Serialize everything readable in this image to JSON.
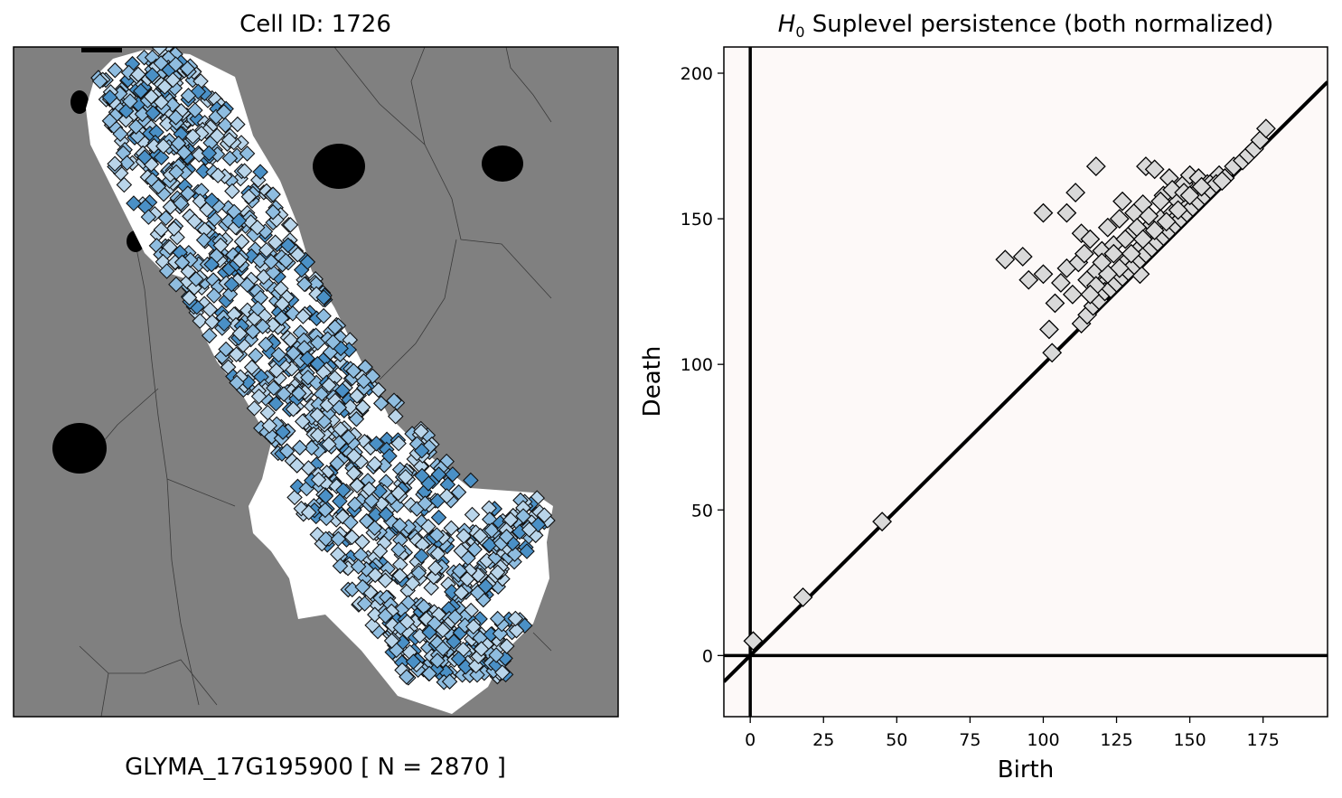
{
  "left_panel": {
    "title": "Cell ID: 1726",
    "caption": "GLYMA_17G195900   [ N = 2870 ]",
    "colors": {
      "background": "#808080",
      "cell": "#ffffff",
      "nuclei": "#000000",
      "boundaries": "#3a3a3a",
      "marker_light": "#b9d5ea",
      "marker_mid": "#8fbde0",
      "marker_dark": "#4a90c6"
    },
    "marker_shape": "diamond"
  },
  "chart_data": {
    "type": "scatter",
    "title_symbol": "H",
    "title_subscript": "0",
    "title_rest": " Suplevel persistence (both normalized)",
    "xlabel": "Birth",
    "ylabel": "Death",
    "xlim": [
      -9,
      197
    ],
    "ylim": [
      -21,
      209
    ],
    "xticks": [
      0,
      25,
      50,
      75,
      100,
      125,
      150,
      175
    ],
    "yticks": [
      0,
      50,
      100,
      150,
      200
    ],
    "grid": false,
    "marker": "diamond",
    "marker_color": "#d9d9d9",
    "background": "#fdf9f8",
    "reference_lines": [
      "x = 0",
      "y = 0",
      "y = x"
    ],
    "points": [
      [
        1,
        5
      ],
      [
        18,
        20
      ],
      [
        45,
        46
      ],
      [
        103,
        104
      ],
      [
        102,
        112
      ],
      [
        104,
        121
      ],
      [
        106,
        128
      ],
      [
        87,
        136
      ],
      [
        93,
        137
      ],
      [
        95,
        129
      ],
      [
        100,
        131
      ],
      [
        100,
        152
      ],
      [
        108,
        152
      ],
      [
        111,
        159
      ],
      [
        118,
        168
      ],
      [
        108,
        133
      ],
      [
        112,
        135
      ],
      [
        113,
        145
      ],
      [
        115,
        129
      ],
      [
        116,
        143
      ],
      [
        118,
        132
      ],
      [
        120,
        139
      ],
      [
        121,
        128
      ],
      [
        122,
        147
      ],
      [
        124,
        141
      ],
      [
        126,
        150
      ],
      [
        127,
        156
      ],
      [
        128,
        135
      ],
      [
        130,
        145
      ],
      [
        131,
        152
      ],
      [
        132,
        139
      ],
      [
        133,
        131
      ],
      [
        134,
        155
      ],
      [
        135,
        142
      ],
      [
        135,
        168
      ],
      [
        137,
        148
      ],
      [
        138,
        167
      ],
      [
        139,
        143
      ],
      [
        140,
        150
      ],
      [
        141,
        158
      ],
      [
        142,
        146
      ],
      [
        143,
        164
      ],
      [
        144,
        152
      ],
      [
        145,
        150
      ],
      [
        146,
        156
      ],
      [
        147,
        160
      ],
      [
        148,
        162
      ],
      [
        149,
        154
      ],
      [
        150,
        165
      ],
      [
        151,
        157
      ],
      [
        152,
        159
      ],
      [
        153,
        164
      ],
      [
        155,
        160
      ],
      [
        156,
        162
      ],
      [
        158,
        163
      ],
      [
        160,
        165
      ],
      [
        162,
        164
      ],
      [
        165,
        168
      ],
      [
        168,
        170
      ],
      [
        170,
        172
      ],
      [
        172,
        174
      ],
      [
        174,
        177
      ],
      [
        176,
        181
      ],
      [
        113,
        114
      ],
      [
        115,
        117
      ],
      [
        117,
        120
      ],
      [
        119,
        122
      ],
      [
        121,
        125
      ],
      [
        123,
        126
      ],
      [
        125,
        128
      ],
      [
        127,
        130
      ],
      [
        129,
        132
      ],
      [
        131,
        134
      ],
      [
        133,
        136
      ],
      [
        135,
        138
      ],
      [
        137,
        140
      ],
      [
        139,
        142
      ],
      [
        141,
        144
      ],
      [
        143,
        146
      ],
      [
        145,
        148
      ],
      [
        147,
        150
      ],
      [
        149,
        152
      ],
      [
        151,
        154
      ],
      [
        153,
        156
      ],
      [
        155,
        158
      ],
      [
        157,
        160
      ],
      [
        159,
        162
      ],
      [
        161,
        163
      ],
      [
        128,
        143
      ],
      [
        132,
        147
      ],
      [
        136,
        151
      ],
      [
        140,
        156
      ],
      [
        144,
        160
      ],
      [
        148,
        159
      ],
      [
        124,
        138
      ],
      [
        118,
        127
      ],
      [
        110,
        124
      ],
      [
        114,
        138
      ],
      [
        126,
        133
      ],
      [
        130,
        138
      ],
      [
        134,
        143
      ],
      [
        138,
        146
      ],
      [
        142,
        149
      ],
      [
        146,
        153
      ],
      [
        150,
        158
      ],
      [
        154,
        161
      ],
      [
        122,
        131
      ],
      [
        120,
        135
      ],
      [
        116,
        124
      ]
    ]
  }
}
